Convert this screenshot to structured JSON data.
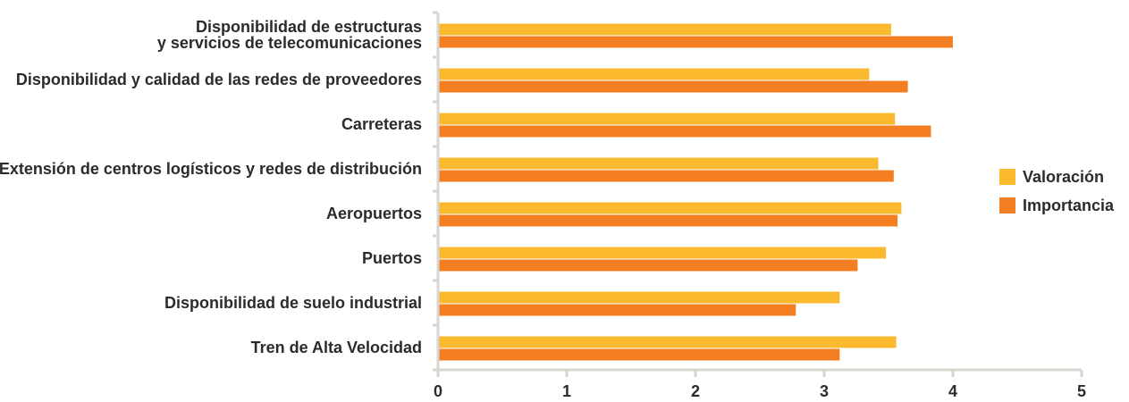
{
  "chart_data": {
    "type": "bar",
    "orientation": "horizontal",
    "categories": [
      [
        "Disponibilidad de estructuras",
        "y servicios de telecomunicaciones"
      ],
      [
        "Disponibilidad y calidad de las redes de proveedores"
      ],
      [
        "Carreteras"
      ],
      [
        "Extensión de centros logísticos y redes de distribución"
      ],
      [
        "Aeropuertos"
      ],
      [
        "Puertos"
      ],
      [
        "Disponibilidad de suelo industrial"
      ],
      [
        "Tren de Alta Velocidad"
      ]
    ],
    "series": [
      {
        "name": "Valoración",
        "color": "#FBB930",
        "values": [
          3.52,
          3.35,
          3.55,
          3.42,
          3.6,
          3.48,
          3.12,
          3.56
        ]
      },
      {
        "name": "Importancia",
        "color": "#F37F22",
        "values": [
          4.0,
          3.65,
          3.83,
          3.54,
          3.57,
          3.26,
          2.78,
          3.12
        ]
      }
    ],
    "xlim": [
      0,
      5
    ],
    "x_ticks": [
      "0",
      "1",
      "2",
      "3",
      "4",
      "5"
    ],
    "title": "",
    "xlabel": "",
    "ylabel": "",
    "grid": false,
    "legend_position": "right"
  }
}
